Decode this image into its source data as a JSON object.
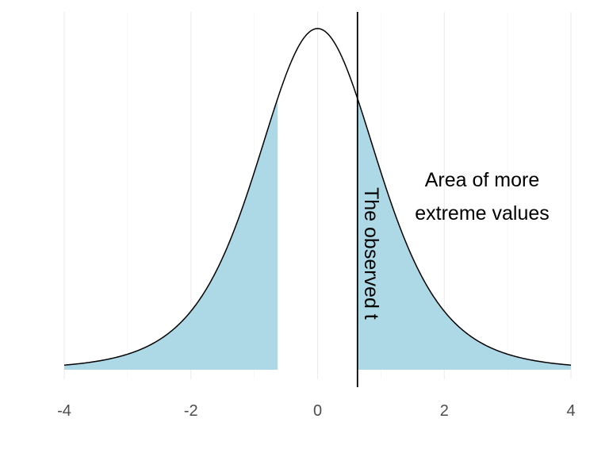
{
  "chart_data": {
    "type": "area",
    "distribution": "t",
    "x_range": [
      -4,
      4
    ],
    "observed_t": 0.63,
    "shaded_regions": [
      {
        "from": -4,
        "to": -0.63,
        "color": "#add8e6"
      },
      {
        "from": 0.63,
        "to": 4,
        "color": "#add8e6"
      }
    ],
    "curve_color": "#000000",
    "observed_line_color": "#000000",
    "xticks": [
      -4,
      -2,
      0,
      2,
      4
    ],
    "xtick_labels": [
      "-4",
      "-2",
      "0",
      "2",
      "4"
    ],
    "xlim": [
      -4,
      4
    ],
    "grid": "vertical",
    "title": "",
    "xlabel": "",
    "ylabel": "",
    "annotations": {
      "observed_line_label": "The observed t",
      "area_label_line1": "Area of more",
      "area_label_line2": "extreme values"
    }
  }
}
